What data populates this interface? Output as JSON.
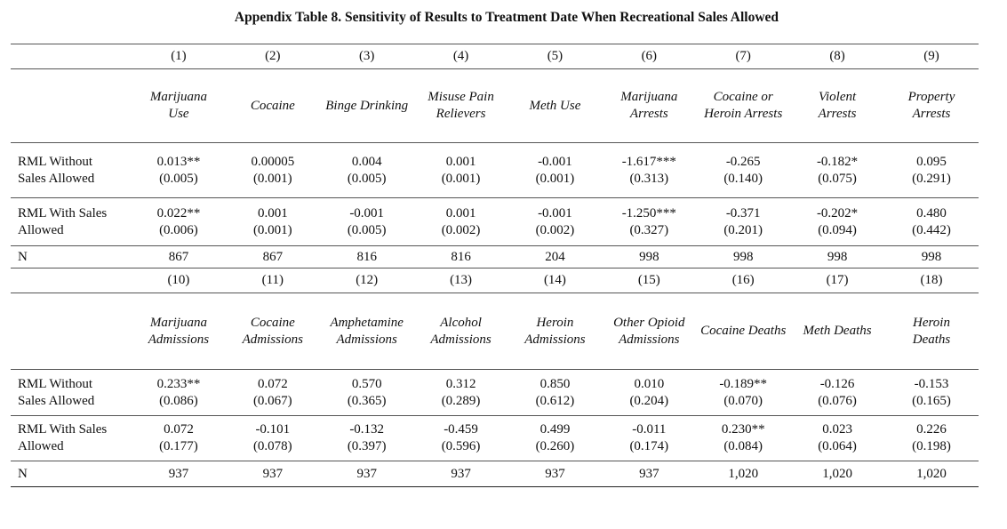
{
  "title": "Appendix Table 8. Sensitivity of Results to Treatment Date When Recreational Sales Allowed",
  "panel1": {
    "col_numbers": [
      "(1)",
      "(2)",
      "(3)",
      "(4)",
      "(5)",
      "(6)",
      "(7)",
      "(8)",
      "(9)"
    ],
    "col_names": [
      [
        "Marijuana",
        "Use"
      ],
      [
        "Cocaine"
      ],
      [
        "Binge Drinking"
      ],
      [
        "Misuse Pain",
        "Relievers"
      ],
      [
        "Meth Use"
      ],
      [
        "Marijuana",
        "Arrests"
      ],
      [
        "Cocaine or",
        "Heroin Arrests"
      ],
      [
        "Violent",
        "Arrests"
      ],
      [
        "Property",
        "Arrests"
      ]
    ],
    "rows": [
      {
        "label": [
          "RML Without",
          "Sales Allowed"
        ],
        "coef": [
          "0.013**",
          "0.00005",
          "0.004",
          "0.001",
          "-0.001",
          "-1.617***",
          "-0.265",
          "-0.182*",
          "0.095"
        ],
        "se": [
          "(0.005)",
          "(0.001)",
          "(0.005)",
          "(0.001)",
          "(0.001)",
          "(0.313)",
          "(0.140)",
          "(0.075)",
          "(0.291)"
        ]
      },
      {
        "label": [
          "RML With Sales",
          "Allowed"
        ],
        "coef": [
          "0.022**",
          "0.001",
          "-0.001",
          "0.001",
          "-0.001",
          "-1.250***",
          "-0.371",
          "-0.202*",
          "0.480"
        ],
        "se": [
          "(0.006)",
          "(0.001)",
          "(0.005)",
          "(0.002)",
          "(0.002)",
          "(0.327)",
          "(0.201)",
          "(0.094)",
          "(0.442)"
        ]
      }
    ],
    "n_label": "N",
    "n": [
      "867",
      "867",
      "816",
      "816",
      "204",
      "998",
      "998",
      "998",
      "998"
    ]
  },
  "panel2": {
    "col_numbers": [
      "(10)",
      "(11)",
      "(12)",
      "(13)",
      "(14)",
      "(15)",
      "(16)",
      "(17)",
      "(18)"
    ],
    "col_names": [
      [
        "Marijuana",
        "Admissions"
      ],
      [
        "Cocaine",
        "Admissions"
      ],
      [
        "Amphetamine",
        "Admissions"
      ],
      [
        "Alcohol",
        "Admissions"
      ],
      [
        "Heroin",
        "Admissions"
      ],
      [
        "Other Opioid",
        "Admissions"
      ],
      [
        "Cocaine Deaths"
      ],
      [
        "Meth Deaths"
      ],
      [
        "Heroin",
        "Deaths"
      ]
    ],
    "rows": [
      {
        "label": [
          "RML Without",
          "Sales Allowed"
        ],
        "coef": [
          "0.233**",
          "0.072",
          "0.570",
          "0.312",
          "0.850",
          "0.010",
          "-0.189**",
          "-0.126",
          "-0.153"
        ],
        "se": [
          "(0.086)",
          "(0.067)",
          "(0.365)",
          "(0.289)",
          "(0.612)",
          "(0.204)",
          "(0.070)",
          "(0.076)",
          "(0.165)"
        ]
      },
      {
        "label": [
          "RML With Sales",
          "Allowed"
        ],
        "coef": [
          "0.072",
          "-0.101",
          "-0.132",
          "-0.459",
          "0.499",
          "-0.011",
          "0.230**",
          "0.023",
          "0.226"
        ],
        "se": [
          "(0.177)",
          "(0.078)",
          "(0.397)",
          "(0.596)",
          "(0.260)",
          "(0.174)",
          "(0.084)",
          "(0.064)",
          "(0.198)"
        ]
      }
    ],
    "n_label": "N",
    "n": [
      "937",
      "937",
      "937",
      "937",
      "937",
      "937",
      "1,020",
      "1,020",
      "1,020"
    ]
  }
}
